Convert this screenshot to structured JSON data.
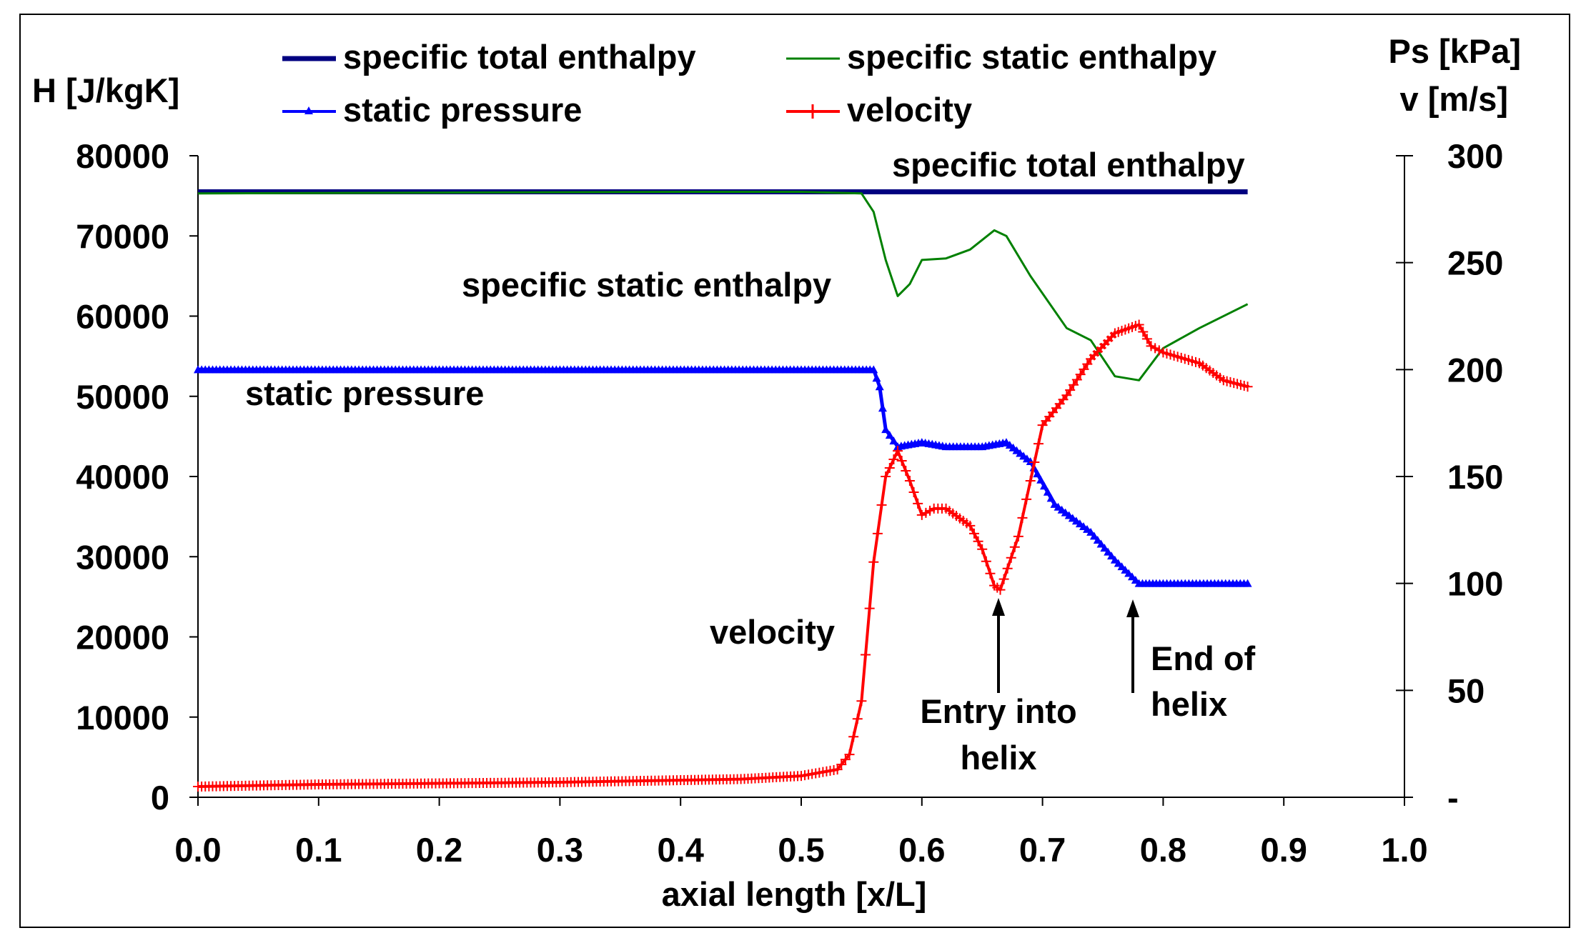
{
  "chart_data": {
    "type": "line",
    "xlabel": "axial length [x/L]",
    "ylabel_left": "H [J/kgK]",
    "ylabel_right_lines": [
      "Ps [kPa]",
      "v [m/s]"
    ],
    "xlim": [
      0,
      1
    ],
    "ylim_left": [
      0,
      80000
    ],
    "ylim_right": [
      0,
      300
    ],
    "x_ticks": [
      "0.0",
      "0.1",
      "0.2",
      "0.3",
      "0.4",
      "0.5",
      "0.6",
      "0.7",
      "0.8",
      "0.9",
      "1.0"
    ],
    "y_left_ticks": [
      "0",
      "10000",
      "20000",
      "30000",
      "40000",
      "50000",
      "60000",
      "70000",
      "80000"
    ],
    "y_right_ticks": [
      "-",
      "50",
      "100",
      "150",
      "200",
      "250",
      "300"
    ],
    "legend": [
      {
        "label": "specific total enthalpy",
        "color": "#000080"
      },
      {
        "label": "specific static enthalpy",
        "color": "#008000"
      },
      {
        "label": "static pressure",
        "color": "#0000FF"
      },
      {
        "label": "velocity",
        "color": "#FF0000"
      }
    ],
    "series": [
      {
        "name": "specific total enthalpy",
        "axis": "left",
        "color": "#000080",
        "x": [
          0.0,
          0.1,
          0.2,
          0.3,
          0.4,
          0.5,
          0.55,
          0.6,
          0.7,
          0.8,
          0.87
        ],
        "y": [
          75500,
          75500,
          75500,
          75500,
          75500,
          75500,
          75500,
          75500,
          75500,
          75500,
          75500
        ]
      },
      {
        "name": "specific static enthalpy",
        "axis": "left",
        "color": "#008000",
        "x": [
          0.0,
          0.2,
          0.4,
          0.5,
          0.55,
          0.56,
          0.57,
          0.58,
          0.59,
          0.6,
          0.62,
          0.64,
          0.66,
          0.67,
          0.69,
          0.72,
          0.74,
          0.76,
          0.78,
          0.8,
          0.83,
          0.87
        ],
        "y": [
          75300,
          75400,
          75500,
          75500,
          75300,
          73000,
          67000,
          62500,
          64000,
          67000,
          67200,
          68300,
          70700,
          70000,
          65000,
          58500,
          57000,
          52500,
          52000,
          56000,
          58500,
          61500
        ]
      },
      {
        "name": "static pressure",
        "axis": "right",
        "color": "#0000FF",
        "x": [
          0.0,
          0.1,
          0.2,
          0.3,
          0.4,
          0.5,
          0.56,
          0.565,
          0.57,
          0.58,
          0.6,
          0.62,
          0.65,
          0.67,
          0.69,
          0.71,
          0.74,
          0.76,
          0.78,
          0.8,
          0.87
        ],
        "y": [
          200,
          200,
          200,
          200,
          200,
          200,
          200,
          192,
          172,
          164,
          166,
          164,
          164,
          166,
          157,
          137,
          124,
          111,
          100,
          100,
          100
        ]
      },
      {
        "name": "velocity",
        "axis": "right",
        "color": "#FF0000",
        "x": [
          0.0,
          0.1,
          0.2,
          0.3,
          0.4,
          0.45,
          0.5,
          0.53,
          0.54,
          0.55,
          0.56,
          0.57,
          0.58,
          0.59,
          0.6,
          0.61,
          0.62,
          0.64,
          0.65,
          0.66,
          0.665,
          0.68,
          0.69,
          0.7,
          0.72,
          0.74,
          0.76,
          0.78,
          0.79,
          0.8,
          0.83,
          0.85,
          0.87
        ],
        "y": [
          5,
          6,
          6.5,
          7,
          8,
          8.5,
          10,
          13,
          20,
          45,
          110,
          150,
          162,
          148,
          132,
          135,
          135,
          127,
          116,
          99,
          97,
          122,
          148,
          174,
          188,
          205,
          217,
          221,
          211,
          208,
          203,
          195,
          192
        ]
      }
    ],
    "annotations": {
      "total_enthalpy": "specific total enthalpy",
      "static_enthalpy": "specific static enthalpy",
      "static_pressure": "static pressure",
      "velocity": "velocity",
      "entry_line1": "Entry into",
      "entry_line2": "helix",
      "end_line1": "End of",
      "end_line2": "helix"
    }
  }
}
